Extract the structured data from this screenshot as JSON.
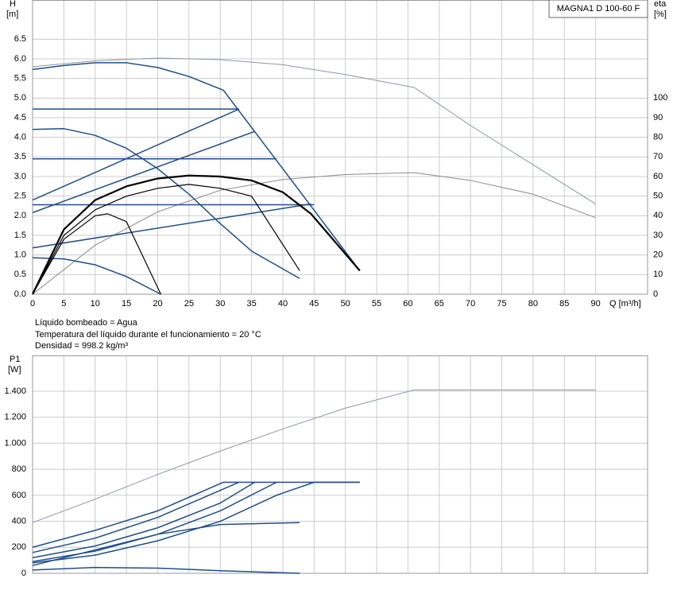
{
  "chart_data": [
    {
      "type": "line",
      "box_label": "MAGNA1 D 100-60 F",
      "ylabel": "H",
      "yunit": "[m]",
      "y2label": "eta",
      "y2unit": "[%]",
      "xlabel": "Q [m³/h]",
      "notes": [
        "Líquido bombeado = Agua",
        "Temperatura del líquido durante el funcionamiento = 20 °C",
        "Densidad = 998.2 kg/m³"
      ],
      "xlim": [
        0,
        98.3
      ],
      "xticks": [
        0,
        5,
        10,
        15,
        20,
        25,
        30,
        35,
        40,
        45,
        50,
        55,
        60,
        65,
        70,
        75,
        80,
        85,
        90
      ],
      "ylim": [
        0,
        7.5
      ],
      "yticks": [
        {
          "value": 0,
          "label": "0.0"
        },
        0.5,
        {
          "value": 1,
          "label": "1.0"
        },
        1.5,
        {
          "value": 2,
          "label": "2.0"
        },
        2.5,
        {
          "value": 3,
          "label": "3.0"
        },
        3.5,
        {
          "value": 4,
          "label": "4.0"
        },
        4.5,
        {
          "value": 5,
          "label": "5.0"
        },
        5.5,
        {
          "value": 6,
          "label": "6.0"
        },
        6.5
      ],
      "y2lim": [
        0,
        150
      ],
      "y2ticks": [
        0,
        10,
        20,
        30,
        40,
        50,
        60,
        70,
        80,
        90,
        100
      ],
      "grid": true,
      "show_xtick_labels": true,
      "series": [
        {
          "color": "#8a96a8",
          "width": 1,
          "x": [
            0,
            10,
            20,
            30,
            40,
            50,
            61,
            70,
            80,
            90
          ],
          "values": [
            5.8,
            5.95,
            6.02,
            5.98,
            5.85,
            5.6,
            5.27,
            4.3,
            3.3,
            2.3
          ]
        },
        {
          "color": "#8a8a8a",
          "width": 1,
          "axis": "y2",
          "x": [
            0,
            10,
            20,
            30,
            40,
            50,
            61,
            70,
            80,
            90
          ],
          "values": [
            0,
            25,
            42,
            53,
            58.5,
            61,
            62,
            58,
            51,
            39
          ]
        },
        {
          "color": "#1f4e8c",
          "width": 1.5,
          "x": [
            0,
            5,
            10,
            15,
            20,
            25,
            30.5,
            52.3
          ],
          "values": [
            5.73,
            5.83,
            5.9,
            5.9,
            5.78,
            5.55,
            5.2,
            0.6
          ]
        },
        {
          "color": "#1f4e8c",
          "width": 1.5,
          "x": [
            0,
            33
          ],
          "values": [
            4.72,
            4.72
          ]
        },
        {
          "color": "#1f4e8c",
          "width": 1.5,
          "x": [
            0,
            39
          ],
          "values": [
            3.45,
            3.45
          ]
        },
        {
          "color": "#1f4e8c",
          "width": 1.5,
          "x": [
            0,
            45
          ],
          "values": [
            2.28,
            2.28
          ]
        },
        {
          "color": "#1f4e8c",
          "width": 1.5,
          "x": [
            0,
            33
          ],
          "values": [
            2.4,
            4.72
          ]
        },
        {
          "color": "#1f4e8c",
          "width": 1.5,
          "x": [
            0,
            35.5
          ],
          "values": [
            2.08,
            4.15
          ]
        },
        {
          "color": "#1f4e8c",
          "width": 1.5,
          "x": [
            0,
            44.5
          ],
          "values": [
            1.18,
            2.3
          ]
        },
        {
          "color": "#1f4e8c",
          "width": 1.5,
          "x": [
            0,
            5,
            10,
            15,
            20,
            25,
            30,
            35,
            42.7
          ],
          "values": [
            4.2,
            4.22,
            4.05,
            3.72,
            3.2,
            2.55,
            1.8,
            1.1,
            0.4
          ]
        },
        {
          "color": "#1f4e8c",
          "width": 1.5,
          "x": [
            0,
            5,
            10,
            15,
            20.5
          ],
          "values": [
            0.93,
            0.9,
            0.75,
            0.45,
            0
          ]
        },
        {
          "color": "#000000",
          "width": 2.2,
          "axis": "y2",
          "x": [
            0,
            5,
            10,
            15,
            20,
            25,
            30,
            35,
            40,
            44.5,
            52.3
          ],
          "values": [
            0,
            33,
            48,
            55,
            59,
            60.5,
            60,
            58,
            52,
            41,
            12
          ]
        },
        {
          "color": "#000000",
          "width": 1.2,
          "axis": "y2",
          "x": [
            0,
            5,
            10,
            15,
            20,
            25,
            30,
            35,
            42.7
          ],
          "values": [
            0,
            30,
            43,
            50,
            54,
            56,
            54,
            50,
            12
          ]
        },
        {
          "color": "#000000",
          "width": 1.2,
          "axis": "y2",
          "x": [
            0,
            5,
            10,
            12,
            15,
            20.5
          ],
          "values": [
            0,
            28,
            40,
            41,
            37,
            0
          ]
        }
      ]
    },
    {
      "type": "line",
      "ylabel": "P1",
      "yunit": "[W]",
      "xlim": [
        0,
        98.3
      ],
      "xticks": [
        0,
        5,
        10,
        15,
        20,
        25,
        30,
        35,
        40,
        45,
        50,
        55,
        60,
        65,
        70,
        75,
        80,
        85,
        90
      ],
      "ylim": [
        0,
        1675
      ],
      "yticks": [
        0,
        200,
        400,
        600,
        800,
        {
          "value": 1000,
          "label": "1.000"
        },
        {
          "value": 1200,
          "label": "1.200"
        },
        {
          "value": 1400,
          "label": "1.400"
        }
      ],
      "grid": true,
      "show_xtick_labels": false,
      "series": [
        {
          "color": "#8a96a8",
          "width": 1,
          "x": [
            0,
            10,
            20,
            30,
            40,
            50,
            61,
            90
          ],
          "values": [
            390,
            570,
            760,
            940,
            1110,
            1270,
            1410,
            1410
          ]
        },
        {
          "color": "#1f4e8c",
          "width": 1.5,
          "x": [
            0,
            10,
            20,
            30.5,
            52.3
          ],
          "values": [
            200,
            330,
            480,
            700,
            700
          ]
        },
        {
          "color": "#1f4e8c",
          "width": 1.5,
          "x": [
            0,
            10,
            20,
            33
          ],
          "values": [
            160,
            270,
            430,
            700
          ]
        },
        {
          "color": "#1f4e8c",
          "width": 1.5,
          "x": [
            0,
            10,
            20,
            30,
            35.5
          ],
          "values": [
            120,
            210,
            350,
            540,
            700
          ]
        },
        {
          "color": "#1f4e8c",
          "width": 1.5,
          "x": [
            0,
            10,
            20,
            30,
            39
          ],
          "values": [
            90,
            170,
            300,
            480,
            700
          ]
        },
        {
          "color": "#1f4e8c",
          "width": 1.5,
          "x": [
            0,
            10,
            20,
            30,
            39,
            45,
            52.3
          ],
          "values": [
            80,
            140,
            250,
            400,
            600,
            700,
            700
          ]
        },
        {
          "color": "#1f4e8c",
          "width": 1.5,
          "x": [
            0,
            20,
            30,
            42.7
          ],
          "values": [
            60,
            300,
            375,
            390
          ]
        },
        {
          "color": "#1f4e8c",
          "width": 1.5,
          "x": [
            0,
            10,
            20,
            30,
            42.7
          ],
          "values": [
            25,
            45,
            40,
            20,
            0
          ]
        }
      ]
    }
  ]
}
